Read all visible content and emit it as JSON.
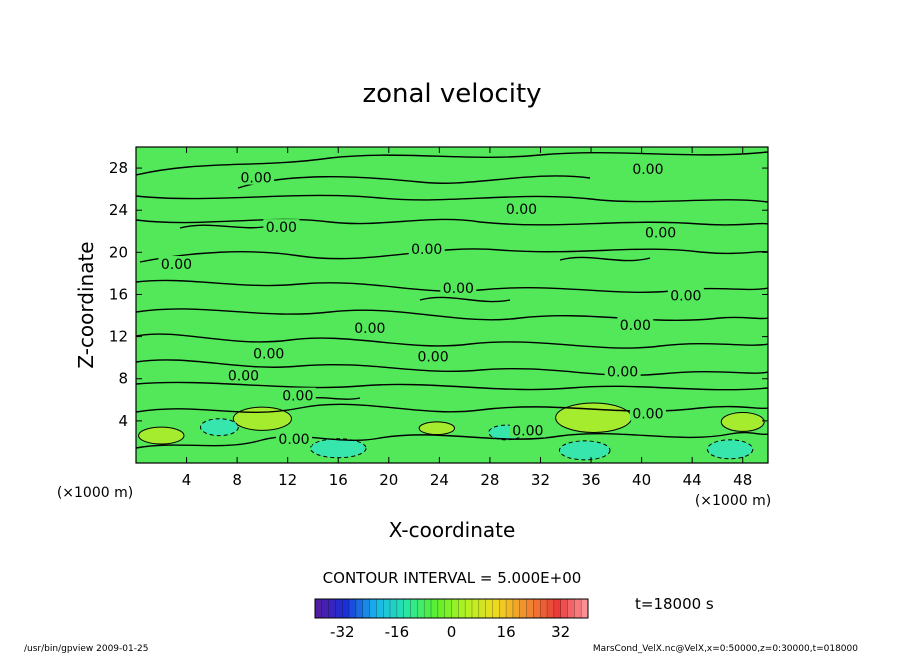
{
  "chart_data": {
    "type": "heatmap",
    "title": "zonal velocity",
    "xlabel": "X-coordinate",
    "ylabel": "Z-coordinate",
    "x_unit": "(×1000 m)",
    "y_unit": "(×1000 m)",
    "xlim": [
      0,
      50
    ],
    "ylim": [
      0,
      30
    ],
    "x_ticks": [
      "4",
      "8",
      "12",
      "16",
      "20",
      "24",
      "28",
      "32",
      "36",
      "40",
      "44",
      "48"
    ],
    "y_ticks": [
      "4",
      "8",
      "12",
      "16",
      "20",
      "24",
      "28"
    ],
    "contour_interval_label": "CONTOUR INTERVAL = 5.000E+00",
    "contour_labels": [
      {
        "text": "0.00",
        "x": 9.5,
        "z": 27.0
      },
      {
        "text": "0.00",
        "x": 11.5,
        "z": 22.3
      },
      {
        "text": "0.00",
        "x": 3.2,
        "z": 18.8
      },
      {
        "text": "0.00",
        "x": 23.0,
        "z": 20.2
      },
      {
        "text": "0.00",
        "x": 30.5,
        "z": 24.0
      },
      {
        "text": "0.00",
        "x": 40.5,
        "z": 27.8
      },
      {
        "text": "0.00",
        "x": 41.5,
        "z": 21.8
      },
      {
        "text": "0.00",
        "x": 25.5,
        "z": 16.5
      },
      {
        "text": "0.00",
        "x": 43.5,
        "z": 15.8
      },
      {
        "text": "0.00",
        "x": 18.5,
        "z": 12.7
      },
      {
        "text": "0.00",
        "x": 39.5,
        "z": 13.0
      },
      {
        "text": "0.00",
        "x": 10.5,
        "z": 10.3
      },
      {
        "text": "0.00",
        "x": 23.5,
        "z": 10.0
      },
      {
        "text": "0.00",
        "x": 8.5,
        "z": 8.2
      },
      {
        "text": "0.00",
        "x": 38.5,
        "z": 8.6
      },
      {
        "text": "0.00",
        "x": 12.8,
        "z": 6.3
      },
      {
        "text": "0.00",
        "x": 40.5,
        "z": 4.6
      },
      {
        "text": "0.00",
        "x": 31.0,
        "z": 3.0
      },
      {
        "text": "0.00",
        "x": 12.5,
        "z": 2.2
      }
    ],
    "colorbar": {
      "range": [
        -40,
        40
      ],
      "tick_labels": [
        "-32",
        "-16",
        "0",
        "16",
        "32"
      ],
      "tick_values": [
        -32,
        -16,
        0,
        16,
        32
      ],
      "colors": [
        "#5a1a9e",
        "#1a2fd6",
        "#1ab4ee",
        "#28e6a8",
        "#5cf02c",
        "#b4f224",
        "#f0d820",
        "#f08a30",
        "#e83a3a",
        "#ff9aa0"
      ]
    },
    "field_colors": {
      "background": "#52e85a",
      "positive": "#a6ec2e",
      "negative": "#36e6ac"
    },
    "positive_regions": [
      {
        "x": 10.0,
        "z": 4.2,
        "rx": 2.3,
        "rz": 1.1
      },
      {
        "x": 36.2,
        "z": 4.3,
        "rx": 3.0,
        "rz": 1.4
      },
      {
        "x": 48.0,
        "z": 3.9,
        "rx": 1.7,
        "rz": 0.9
      },
      {
        "x": 2.0,
        "z": 2.6,
        "rx": 1.8,
        "rz": 0.8
      },
      {
        "x": 23.8,
        "z": 3.3,
        "rx": 1.4,
        "rz": 0.6
      }
    ],
    "negative_regions": [
      {
        "x": 6.6,
        "z": 3.4,
        "rx": 1.5,
        "rz": 0.8
      },
      {
        "x": 29.3,
        "z": 2.9,
        "rx": 1.4,
        "rz": 0.7
      },
      {
        "x": 16.0,
        "z": 1.4,
        "rx": 2.2,
        "rz": 0.9
      },
      {
        "x": 35.5,
        "z": 1.2,
        "rx": 2.0,
        "rz": 0.9
      },
      {
        "x": 47.0,
        "z": 1.3,
        "rx": 1.8,
        "rz": 0.9
      }
    ]
  },
  "time_label": "t=18000 s",
  "footer": {
    "left": "/usr/bin/gpview   2009-01-25",
    "right": "MarsCond_VelX.nc@VelX,x=0:50000,z=0:30000,t=018000"
  }
}
